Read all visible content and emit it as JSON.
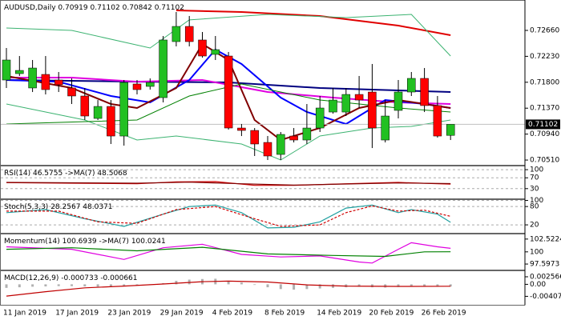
{
  "chart_data": [
    {
      "type": "candlestick",
      "title": "AUDUSD,Daily",
      "categories": [
        "11 Jan 2019",
        null,
        null,
        null,
        "17 Jan 2019",
        null,
        null,
        null,
        "23 Jan 2019",
        null,
        null,
        null,
        "29 Jan 2019",
        null,
        null,
        null,
        "4 Feb 2019",
        null,
        null,
        null,
        "8 Feb 2019",
        null,
        null,
        null,
        "14 Feb 2019",
        null,
        null,
        null,
        "20 Feb 2019",
        null,
        null,
        null,
        "26 Feb 2019",
        null,
        null
      ],
      "open": [
        0.71837,
        0.71943,
        0.71705,
        0.7193,
        0.71837,
        0.71705,
        0.71572,
        0.712,
        0.71399,
        0.70908,
        0.71771,
        0.71731,
        0.71545,
        0.72474,
        0.72726,
        0.72501,
        0.72262,
        0.72235,
        0.71041,
        0.71001,
        0.70802,
        0.70603,
        0.70908,
        0.70842,
        0.71041,
        0.71306,
        0.71306,
        0.71598,
        0.71638,
        0.70842,
        0.71333,
        0.71638,
        0.71864,
        0.71413,
        0.70919
      ],
      "high": [
        0.72368,
        0.72235,
        0.72169,
        0.72235,
        0.7197,
        0.71864,
        0.71705,
        0.71505,
        0.71505,
        0.71837,
        0.71837,
        0.71864,
        0.72567,
        0.72965,
        0.72899,
        0.72633,
        0.72567,
        0.72302,
        0.71108,
        0.71041,
        0.70908,
        0.70975,
        0.71041,
        0.71439,
        0.71572,
        0.71705,
        0.71705,
        0.71904,
        0.72103,
        0.71505,
        0.71837,
        0.7197,
        0.72036,
        0.71572,
        0.71102
      ],
      "low": [
        0.71705,
        0.71904,
        0.71638,
        0.71598,
        0.71638,
        0.71439,
        0.71174,
        0.71174,
        0.70776,
        0.70749,
        0.71598,
        0.71678,
        0.71466,
        0.72395,
        0.72395,
        0.72209,
        0.72169,
        0.71015,
        0.70908,
        0.70577,
        0.70511,
        0.70511,
        0.70802,
        0.70776,
        0.70975,
        0.7128,
        0.7124,
        0.71373,
        0.70709,
        0.70802,
        0.712,
        0.71572,
        0.71306,
        0.70882,
        0.70842
      ],
      "close": [
        0.72169,
        0.71996,
        0.72036,
        0.71678,
        0.71758,
        0.71572,
        0.7124,
        0.71399,
        0.70908,
        0.71797,
        0.71678,
        0.71797,
        0.72501,
        0.72726,
        0.72474,
        0.72235,
        0.72341,
        0.71041,
        0.71001,
        0.70776,
        0.70577,
        0.70935,
        0.70842,
        0.71041,
        0.71373,
        0.71505,
        0.71598,
        0.71505,
        0.71041,
        0.7124,
        0.71638,
        0.71864,
        0.71413,
        0.70908,
        0.71102
      ],
      "up_color": "#22c022",
      "down_color": "#ff0000",
      "ylim": [
        0.70431,
        0.73164
      ],
      "yticks": [
        {
          "value": 0.7266,
          "label": "0.72660"
        },
        {
          "value": 0.7223,
          "label": "0.72230"
        },
        {
          "value": 0.718,
          "label": "0.71800"
        },
        {
          "value": 0.7137,
          "label": "0.71370"
        },
        {
          "value": 0.7094,
          "label": "0.70940"
        },
        {
          "value": 0.7051,
          "label": "0.70510"
        }
      ],
      "overlays": [
        {
          "color": "#e00000",
          "width": 2,
          "x": [
            13,
            18,
            24,
            30,
            34
          ],
          "values": [
            0.72992,
            0.72965,
            0.72899,
            0.7274,
            0.7258
          ]
        },
        {
          "color": "#3cb371",
          "width": 1,
          "x": [
            0,
            5,
            11,
            14,
            20,
            26,
            31,
            34
          ],
          "values": [
            0.727,
            0.7266,
            0.72368,
            0.72833,
            0.72925,
            0.72872,
            0.72925,
            0.72235
          ]
        },
        {
          "color": "#3cb371",
          "width": 1,
          "x": [
            0,
            6,
            10,
            13,
            18,
            21,
            24,
            28,
            31,
            34
          ],
          "values": [
            0.71439,
            0.71174,
            0.70842,
            0.70908,
            0.70776,
            0.70511,
            0.70908,
            0.71041,
            0.71068,
            0.71174
          ]
        },
        {
          "color": "#000080",
          "width": 2,
          "x": [
            0,
            10,
            17,
            24,
            34
          ],
          "values": [
            0.71837,
            0.7181,
            0.71797,
            0.71705,
            0.71638
          ]
        },
        {
          "color": "#e000e0",
          "width": 2,
          "x": [
            0,
            5,
            10,
            15,
            20,
            25,
            30,
            34
          ],
          "values": [
            0.71877,
            0.71877,
            0.7181,
            0.71837,
            0.71638,
            0.71545,
            0.71466,
            0.71439
          ]
        },
        {
          "color": "#0000ff",
          "width": 2,
          "x": [
            0,
            4,
            8,
            11,
            14,
            16,
            18,
            21,
            23,
            26,
            29,
            32,
            34
          ],
          "values": [
            0.71837,
            0.7181,
            0.71572,
            0.71466,
            0.71837,
            0.72341,
            0.72103,
            0.71545,
            0.71306,
            0.71108,
            0.71505,
            0.71439,
            0.71373
          ]
        },
        {
          "color": "#800000",
          "width": 2,
          "x": [
            0,
            5,
            8,
            10,
            13,
            15,
            17,
            19,
            21,
            24,
            27,
            30,
            34
          ],
          "values": [
            0.71904,
            0.71705,
            0.71439,
            0.71373,
            0.71705,
            0.72434,
            0.72169,
            0.71174,
            0.70842,
            0.71041,
            0.71373,
            0.71505,
            0.71373
          ]
        },
        {
          "color": "#008000",
          "width": 1,
          "x": [
            0,
            10,
            14,
            18,
            24,
            30,
            34
          ],
          "values": [
            0.71108,
            0.71174,
            0.71572,
            0.71771,
            0.71505,
            0.71373,
            0.71306
          ]
        }
      ]
    },
    {
      "type": "line",
      "ylim": [
        -6,
        115
      ],
      "yticks": [
        100,
        70,
        30
      ],
      "grid": true,
      "series": [
        {
          "name": "RSI(14)",
          "color": "#d00000",
          "x": [
            0,
            5,
            10,
            13,
            16,
            19,
            22,
            26,
            30,
            33,
            34
          ],
          "values": [
            52,
            50,
            48,
            55,
            56,
            42,
            42,
            48,
            53,
            48,
            46.5755
          ]
        },
        {
          "name": "->MA(7)",
          "color": "#800000",
          "x": [
            0,
            10,
            14,
            18,
            22,
            26,
            30,
            34
          ],
          "values": [
            53,
            50,
            54,
            48,
            43,
            47,
            51,
            48.5068
          ]
        }
      ]
    },
    {
      "type": "line",
      "ylim": [
        -6,
        104
      ],
      "yticks": [
        100,
        80,
        20
      ],
      "grid": true,
      "series": [
        {
          "name": "Stoch(5,3,3)",
          "color": "#20a0a0",
          "x": [
            0,
            3,
            6,
            9,
            12,
            14,
            16,
            18,
            20,
            22,
            24,
            26,
            28,
            30,
            31,
            33,
            34
          ],
          "values": [
            60,
            70,
            40,
            15,
            55,
            80,
            85,
            60,
            10,
            12,
            30,
            75,
            85,
            60,
            70,
            55,
            28.2567
          ]
        },
        {
          "color": "#d00000",
          "dash": true,
          "x": [
            0,
            4,
            7,
            10,
            13,
            16,
            19,
            21,
            24,
            26,
            28,
            30,
            32,
            34
          ],
          "values": [
            65,
            65,
            30,
            25,
            70,
            80,
            40,
            15,
            20,
            60,
            82,
            65,
            68,
            48.0371
          ]
        }
      ]
    },
    {
      "type": "line",
      "ylim": [
        96.5,
        103.6
      ],
      "yticks": [
        102.5224,
        100,
        97.5973
      ],
      "grid": false,
      "series": [
        {
          "name": "Momentum(14)",
          "color": "#e000e0",
          "x": [
            0,
            5,
            9,
            12,
            15,
            18,
            21,
            24,
            27,
            28,
            30,
            31,
            33,
            34
          ],
          "values": [
            101,
            100.5,
            98.5,
            100.8,
            101.5,
            99.5,
            99,
            99.2,
            98,
            97.8,
            100.5,
            101.8,
            101,
            100.6939
          ]
        },
        {
          "name": "->MA(7)",
          "color": "#008000",
          "x": [
            0,
            5,
            10,
            15,
            20,
            25,
            29,
            32,
            34
          ],
          "values": [
            100.5,
            100.8,
            100.2,
            100.9,
            99.6,
            99.3,
            99.1,
            100,
            100.0241
          ]
        }
      ]
    },
    {
      "type": "macd",
      "ylim": [
        -0.00695,
        0.00473
      ],
      "yticks": [
        0.002566,
        {
          "value": 0,
          "label": "0.00"
        },
        -0.004074
      ],
      "grid": false,
      "series": [
        {
          "name": "MACD(12,26,9)",
          "type": "bar",
          "color": "#b0b0b0",
          "values": [
            -0.0012,
            -0.001,
            -0.0008,
            -0.0007,
            -0.0006,
            -0.0006,
            -0.0007,
            -0.0008,
            -0.0009,
            -0.0006,
            -0.0004,
            -0.0002,
            0.0004,
            0.0012,
            0.0016,
            0.0018,
            0.0019,
            0.0012,
            0.0006,
            -0.0002,
            -0.001,
            -0.0016,
            -0.0018,
            -0.0016,
            -0.0014,
            -0.0012,
            -0.001,
            -0.0008,
            -0.001,
            -0.0011,
            -0.0009,
            -0.0007,
            -0.0007,
            -0.0008,
            -0.000733
          ]
        },
        {
          "color": "#c00000",
          "x": [
            0,
            3,
            6,
            9,
            12,
            15,
            17,
            20,
            23,
            26,
            30,
            34
          ],
          "values": [
            -0.004,
            -0.0025,
            -0.0012,
            -0.0006,
            0.0001,
            0.0009,
            0.0011,
            0.0008,
            -0.0002,
            -0.0006,
            -0.0007,
            -0.000661
          ]
        }
      ]
    }
  ]
}
